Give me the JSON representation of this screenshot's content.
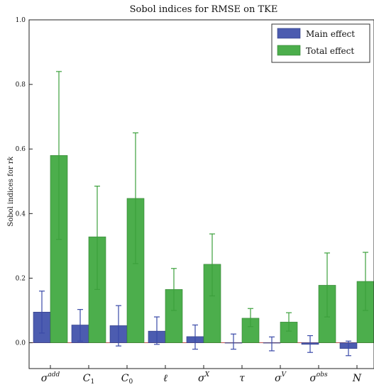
{
  "chart_data": {
    "type": "bar",
    "title": "Sobol indices for RMSE on TKE",
    "ylabel": "Sobol indices for r_k",
    "xlabel": "",
    "ylim": [
      -0.08,
      1.0
    ],
    "yticks": [
      "0.0",
      "0.2",
      "0.4",
      "0.6",
      "0.8",
      "1.0"
    ],
    "categories": [
      {
        "base": "σ",
        "sup": "add",
        "sub": ""
      },
      {
        "base": "C",
        "sup": "",
        "sub": "1"
      },
      {
        "base": "C",
        "sup": "",
        "sub": "0"
      },
      {
        "base": "ℓ",
        "sup": "",
        "sub": ""
      },
      {
        "base": "σ",
        "sup": "X",
        "sub": ""
      },
      {
        "base": "τ",
        "sup": "",
        "sub": ""
      },
      {
        "base": "σ",
        "sup": "V",
        "sub": ""
      },
      {
        "base": "σ",
        "sup": "obs",
        "sub": ""
      },
      {
        "base": "N",
        "sup": "",
        "sub": ""
      }
    ],
    "series": [
      {
        "name": "Main effect",
        "color": "#4c5cb0",
        "values": [
          0.095,
          0.055,
          0.053,
          0.036,
          0.019,
          0.0,
          0.0,
          -0.005,
          -0.018
        ],
        "err_low": [
          0.03,
          0.005,
          -0.01,
          -0.005,
          -0.02,
          -0.02,
          -0.025,
          -0.03,
          -0.04
        ],
        "err_high": [
          0.16,
          0.103,
          0.115,
          0.08,
          0.055,
          0.027,
          0.018,
          0.022,
          0.005
        ]
      },
      {
        "name": "Total effect",
        "color": "#4cae4c",
        "values": [
          0.58,
          0.328,
          0.447,
          0.165,
          0.243,
          0.076,
          0.064,
          0.178,
          0.19
        ],
        "err_low": [
          0.32,
          0.165,
          0.245,
          0.1,
          0.145,
          0.05,
          0.036,
          0.08,
          0.1
        ],
        "err_high": [
          0.84,
          0.485,
          0.65,
          0.23,
          0.337,
          0.106,
          0.093,
          0.278,
          0.28
        ]
      }
    ],
    "legend_position": "top-right",
    "grid": false
  }
}
